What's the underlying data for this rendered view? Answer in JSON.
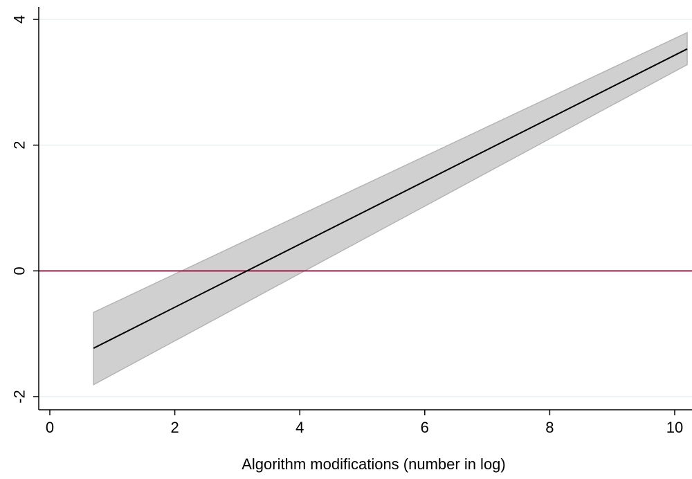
{
  "chart_data": {
    "type": "line",
    "title": "",
    "xlabel": "Algorithm modifications (number in log)",
    "ylabel": "",
    "xlim": [
      -0.2,
      10.3
    ],
    "ylim": [
      -2.05,
      4.2
    ],
    "x_ticks": [
      0,
      2,
      4,
      6,
      8,
      10
    ],
    "y_ticks": [
      -2,
      0,
      2,
      4
    ],
    "x_tick_labels": [
      "0",
      "2",
      "4",
      "6",
      "8",
      "10"
    ],
    "y_tick_labels": [
      "-2",
      "0",
      "2",
      "4"
    ],
    "grid": "horizontal",
    "legend": "none",
    "series": [
      {
        "kind": "line",
        "x": [
          0.7,
          10.2
        ],
        "y": [
          -1.23,
          3.53
        ]
      }
    ],
    "confidence_band": {
      "x": [
        0.7,
        10.2
      ],
      "lower": [
        -1.81,
        3.28
      ],
      "upper": [
        -0.66,
        3.79
      ]
    },
    "reference_lines": [
      {
        "axis": "y",
        "value": 0
      }
    ],
    "colors": {
      "line": "#000000",
      "band_fill": "#d0d0d0",
      "band_edge": "#b5b5b5",
      "reference": "#9b1b46",
      "grid": "#e4ecee",
      "axis": "#000000"
    }
  }
}
